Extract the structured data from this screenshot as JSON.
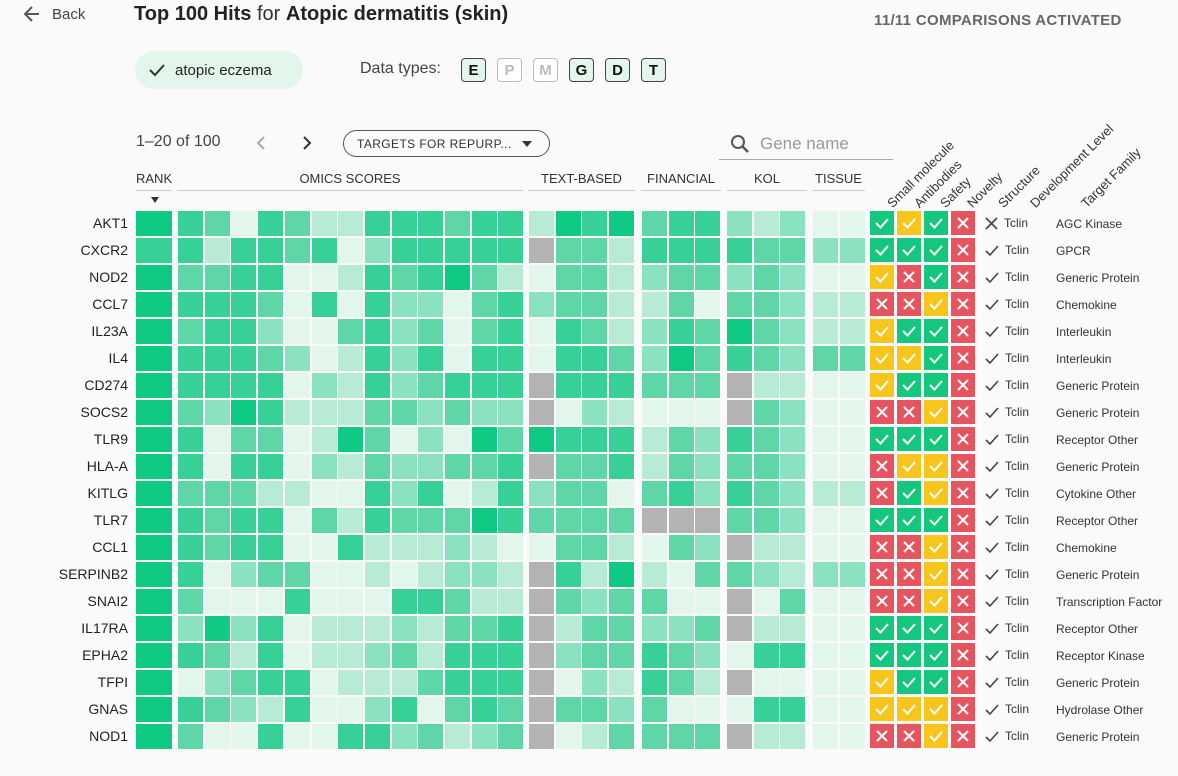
{
  "header": {
    "back_label": "Back",
    "title_main": "Top 100 Hits",
    "title_for": "for",
    "title_disease": "Atopic dermatitis (skin)",
    "comparisons": "11/11 COMPARISONS ACTIVATED"
  },
  "filter_chip": {
    "label": "atopic eczema"
  },
  "data_types": {
    "label": "Data types:",
    "items": [
      {
        "letter": "E",
        "active": true
      },
      {
        "letter": "P",
        "active": false
      },
      {
        "letter": "M",
        "active": false
      },
      {
        "letter": "G",
        "active": true
      },
      {
        "letter": "D",
        "active": true
      },
      {
        "letter": "T",
        "active": true
      }
    ]
  },
  "pagination": {
    "range": "1–20 of 100"
  },
  "view_select": {
    "value": "TARGETS FOR REPURP..."
  },
  "search": {
    "placeholder": "Gene name",
    "value": ""
  },
  "columns": {
    "rank": "RANK",
    "omics": "OMICS SCORES",
    "text": "TEXT-BASED",
    "financial": "FINANCIAL",
    "kol": "KOL",
    "tissue": "TISSUE",
    "rotated": [
      "Small molecule",
      "Antibodies",
      "Safety",
      "Novelty",
      "Structure",
      "Development Level",
      "Target Family"
    ]
  },
  "colors": {
    "l0": "#e3f6ec",
    "l1": "#b8ebd3",
    "l2": "#8ae2c0",
    "l3": "#5ed6a6",
    "l4": "#37d096",
    "l5": "#0fca82",
    "na": "#b3b3b3",
    "yes": "#14c77d",
    "partial": "#f7c51b",
    "no": "#e5545f"
  },
  "rows": [
    {
      "gene": "AKT1",
      "rank": 5,
      "omics": [
        4,
        3,
        0,
        4,
        3,
        1,
        1,
        4,
        4,
        4,
        3,
        4,
        4
      ],
      "text": [
        1,
        5,
        4,
        5
      ],
      "financial": [
        3,
        4,
        4
      ],
      "kol": [
        2,
        1,
        2
      ],
      "tissue": [
        0,
        0
      ],
      "badges": [
        "y",
        "p",
        "y",
        "n"
      ],
      "structure": "x",
      "dev": "Tclin",
      "family": "AGC Kinase"
    },
    {
      "gene": "CXCR2",
      "rank": 4,
      "omics": [
        4,
        1,
        4,
        4,
        3,
        4,
        0,
        2,
        4,
        4,
        4,
        4,
        4
      ],
      "text": [
        "n",
        3,
        3,
        1
      ],
      "financial": [
        4,
        4,
        4
      ],
      "kol": [
        4,
        3,
        3
      ],
      "tissue": [
        2,
        2
      ],
      "badges": [
        "y",
        "y",
        "y",
        "n"
      ],
      "structure": "c",
      "dev": "Tclin",
      "family": "GPCR"
    },
    {
      "gene": "NOD2",
      "rank": 5,
      "omics": [
        3,
        3,
        4,
        4,
        0,
        0,
        1,
        4,
        3,
        4,
        5,
        3,
        1
      ],
      "text": [
        0,
        3,
        3,
        1
      ],
      "financial": [
        2,
        3,
        3
      ],
      "kol": [
        2,
        3,
        2
      ],
      "tissue": [
        0,
        0
      ],
      "badges": [
        "p",
        "n",
        "y",
        "n"
      ],
      "structure": "c",
      "dev": "Tclin",
      "family": "Generic Protein"
    },
    {
      "gene": "CCL7",
      "rank": 5,
      "omics": [
        4,
        4,
        4,
        3,
        0,
        4,
        0,
        4,
        2,
        2,
        0,
        3,
        4
      ],
      "text": [
        2,
        3,
        3,
        1
      ],
      "financial": [
        1,
        3,
        0
      ],
      "kol": [
        3,
        3,
        2
      ],
      "tissue": [
        1,
        1
      ],
      "badges": [
        "n",
        "n",
        "p",
        "n"
      ],
      "structure": "c",
      "dev": "Tclin",
      "family": "Chemokine"
    },
    {
      "gene": "IL23A",
      "rank": 5,
      "omics": [
        3,
        4,
        4,
        2,
        0,
        0,
        3,
        4,
        2,
        3,
        0,
        3,
        4
      ],
      "text": [
        0,
        4,
        3,
        1
      ],
      "financial": [
        2,
        4,
        3
      ],
      "kol": [
        5,
        3,
        2
      ],
      "tissue": [
        1,
        1
      ],
      "badges": [
        "p",
        "y",
        "y",
        "n"
      ],
      "structure": "c",
      "dev": "Tclin",
      "family": "Interleukin"
    },
    {
      "gene": "IL4",
      "rank": 5,
      "omics": [
        4,
        4,
        4,
        3,
        2,
        0,
        1,
        4,
        2,
        4,
        0,
        4,
        4
      ],
      "text": [
        0,
        4,
        4,
        3
      ],
      "financial": [
        2,
        5,
        3
      ],
      "kol": [
        4,
        3,
        2
      ],
      "tissue": [
        3,
        3
      ],
      "badges": [
        "p",
        "p",
        "y",
        "n"
      ],
      "structure": "c",
      "dev": "Tclin",
      "family": "Interleukin"
    },
    {
      "gene": "CD274",
      "rank": 5,
      "omics": [
        4,
        4,
        4,
        4,
        0,
        2,
        1,
        4,
        2,
        3,
        4,
        4,
        4
      ],
      "text": [
        "n",
        4,
        4,
        4
      ],
      "financial": [
        3,
        3,
        3
      ],
      "kol": [
        "n",
        1,
        1
      ],
      "tissue": [
        0,
        0
      ],
      "badges": [
        "p",
        "y",
        "y",
        "n"
      ],
      "structure": "c",
      "dev": "Tclin",
      "family": "Generic Protein"
    },
    {
      "gene": "SOCS2",
      "rank": 5,
      "omics": [
        3,
        2,
        5,
        4,
        1,
        1,
        1,
        3,
        3,
        2,
        3,
        2,
        2
      ],
      "text": [
        "n",
        0,
        2,
        1
      ],
      "financial": [
        0,
        0,
        0
      ],
      "kol": [
        "n",
        3,
        2
      ],
      "tissue": [
        0,
        0
      ],
      "badges": [
        "n",
        "n",
        "p",
        "n"
      ],
      "structure": "c",
      "dev": "Tclin",
      "family": "Generic Protein"
    },
    {
      "gene": "TLR9",
      "rank": 5,
      "omics": [
        4,
        0,
        3,
        3,
        0,
        1,
        5,
        3,
        0,
        2,
        0,
        5,
        3
      ],
      "text": [
        5,
        4,
        4,
        4
      ],
      "financial": [
        1,
        3,
        2
      ],
      "kol": [
        4,
        3,
        2
      ],
      "tissue": [
        0,
        0
      ],
      "badges": [
        "y",
        "y",
        "y",
        "n"
      ],
      "structure": "c",
      "dev": "Tclin",
      "family": "Receptor Other"
    },
    {
      "gene": "HLA-A",
      "rank": 5,
      "omics": [
        4,
        0,
        4,
        4,
        0,
        2,
        1,
        3,
        2,
        2,
        3,
        3,
        4
      ],
      "text": [
        "n",
        3,
        3,
        4
      ],
      "financial": [
        1,
        3,
        2
      ],
      "kol": [
        3,
        3,
        2
      ],
      "tissue": [
        0,
        0
      ],
      "badges": [
        "n",
        "p",
        "p",
        "n"
      ],
      "structure": "c",
      "dev": "Tclin",
      "family": "Generic Protein"
    },
    {
      "gene": "KITLG",
      "rank": 5,
      "omics": [
        3,
        3,
        3,
        1,
        1,
        0,
        0,
        4,
        2,
        4,
        0,
        1,
        4
      ],
      "text": [
        2,
        3,
        3,
        0
      ],
      "financial": [
        3,
        4,
        2
      ],
      "kol": [
        4,
        3,
        2
      ],
      "tissue": [
        1,
        1
      ],
      "badges": [
        "n",
        "y",
        "p",
        "n"
      ],
      "structure": "c",
      "dev": "Tclin",
      "family": "Cytokine Other"
    },
    {
      "gene": "TLR7",
      "rank": 5,
      "omics": [
        4,
        3,
        4,
        4,
        0,
        3,
        1,
        4,
        3,
        3,
        3,
        5,
        4
      ],
      "text": [
        3,
        3,
        3,
        3
      ],
      "financial": [
        "n",
        "n",
        "n"
      ],
      "kol": [
        3,
        3,
        2
      ],
      "tissue": [
        0,
        0
      ],
      "badges": [
        "y",
        "y",
        "y",
        "n"
      ],
      "structure": "c",
      "dev": "Tclin",
      "family": "Receptor Other"
    },
    {
      "gene": "CCL1",
      "rank": 5,
      "omics": [
        4,
        3,
        4,
        4,
        0,
        0,
        4,
        1,
        1,
        1,
        2,
        1,
        0
      ],
      "text": [
        0,
        3,
        3,
        1
      ],
      "financial": [
        0,
        3,
        2
      ],
      "kol": [
        "n",
        1,
        1
      ],
      "tissue": [
        0,
        0
      ],
      "badges": [
        "n",
        "n",
        "p",
        "n"
      ],
      "structure": "c",
      "dev": "Tclin",
      "family": "Chemokine"
    },
    {
      "gene": "SERPINB2",
      "rank": 5,
      "omics": [
        4,
        0,
        2,
        3,
        3,
        0,
        0,
        1,
        0,
        1,
        2,
        2,
        1
      ],
      "text": [
        "n",
        4,
        1,
        5
      ],
      "financial": [
        1,
        0,
        3
      ],
      "kol": [
        3,
        2,
        1
      ],
      "tissue": [
        2,
        2
      ],
      "badges": [
        "n",
        "n",
        "p",
        "n"
      ],
      "structure": "c",
      "dev": "Tclin",
      "family": "Generic Protein"
    },
    {
      "gene": "SNAI2",
      "rank": 5,
      "omics": [
        3,
        0,
        0,
        0,
        4,
        0,
        0,
        0,
        4,
        4,
        3,
        1,
        1
      ],
      "text": [
        "n",
        3,
        2,
        3
      ],
      "financial": [
        3,
        0,
        0
      ],
      "kol": [
        "n",
        0,
        3
      ],
      "tissue": [
        0,
        0
      ],
      "badges": [
        "n",
        "n",
        "p",
        "n"
      ],
      "structure": "c",
      "dev": "Tclin",
      "family": "Transcription Factor"
    },
    {
      "gene": "IL17RA",
      "rank": 5,
      "omics": [
        2,
        5,
        2,
        4,
        0,
        1,
        1,
        1,
        2,
        1,
        3,
        3,
        4
      ],
      "text": [
        "n",
        1,
        3,
        3
      ],
      "financial": [
        2,
        2,
        3
      ],
      "kol": [
        "n",
        1,
        1
      ],
      "tissue": [
        0,
        0
      ],
      "badges": [
        "y",
        "y",
        "y",
        "n"
      ],
      "structure": "c",
      "dev": "Tclin",
      "family": "Receptor Other"
    },
    {
      "gene": "EPHA2",
      "rank": 5,
      "omics": [
        4,
        3,
        1,
        4,
        0,
        1,
        1,
        2,
        3,
        1,
        4,
        4,
        4
      ],
      "text": [
        "n",
        2,
        3,
        3
      ],
      "financial": [
        4,
        3,
        2
      ],
      "kol": [
        0,
        4,
        4
      ],
      "tissue": [
        0,
        0
      ],
      "badges": [
        "y",
        "y",
        "y",
        "n"
      ],
      "structure": "c",
      "dev": "Tclin",
      "family": "Receptor Kinase"
    },
    {
      "gene": "TFPI",
      "rank": 5,
      "omics": [
        0,
        2,
        3,
        4,
        4,
        0,
        1,
        1,
        1,
        3,
        4,
        4,
        4
      ],
      "text": [
        "n",
        0,
        2,
        1
      ],
      "financial": [
        4,
        3,
        1
      ],
      "kol": [
        "n",
        0,
        0
      ],
      "tissue": [
        0,
        0
      ],
      "badges": [
        "p",
        "y",
        "y",
        "n"
      ],
      "structure": "c",
      "dev": "Tclin",
      "family": "Generic Protein"
    },
    {
      "gene": "GNAS",
      "rank": 5,
      "omics": [
        4,
        3,
        2,
        1,
        4,
        0,
        0,
        2,
        4,
        0,
        3,
        4,
        3
      ],
      "text": [
        "n",
        3,
        3,
        2
      ],
      "financial": [
        3,
        0,
        0
      ],
      "kol": [
        0,
        4,
        4
      ],
      "tissue": [
        0,
        0
      ],
      "badges": [
        "p",
        "p",
        "p",
        "n"
      ],
      "structure": "c",
      "dev": "Tclin",
      "family": "Hydrolase Other"
    },
    {
      "gene": "NOD1",
      "rank": 5,
      "omics": [
        3,
        0,
        0,
        4,
        0,
        0,
        4,
        4,
        2,
        3,
        1,
        2,
        3
      ],
      "text": [
        "n",
        0,
        1,
        3
      ],
      "financial": [
        3,
        3,
        3
      ],
      "kol": [
        "n",
        1,
        1
      ],
      "tissue": [
        0,
        0
      ],
      "badges": [
        "n",
        "n",
        "p",
        "n"
      ],
      "structure": "c",
      "dev": "Tclin",
      "family": "Generic Protein"
    }
  ]
}
